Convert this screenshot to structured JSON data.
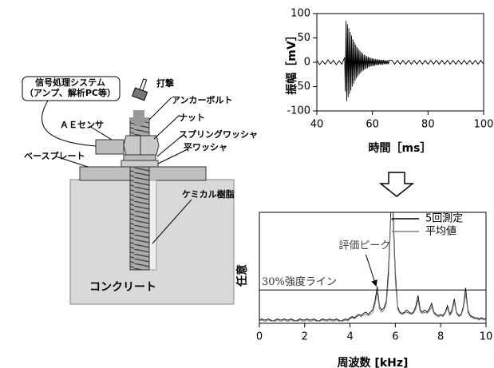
{
  "chart_data": [
    {
      "type": "line",
      "x_label": "時間［ms］",
      "y_label": "振幅［mV］",
      "xlim": [
        40,
        100
      ],
      "ylim": [
        -100,
        100
      ],
      "xticks": [
        40,
        60,
        80,
        100
      ],
      "yticks": [
        -100,
        -50,
        0,
        50,
        100
      ],
      "x": [
        40,
        41,
        42,
        43,
        44,
        45,
        46,
        47,
        48,
        49,
        50,
        50.25,
        50.5,
        50.75,
        51,
        51.25,
        51.5,
        51.75,
        52,
        52.25,
        52.5,
        52.75,
        53,
        53.25,
        53.5,
        53.75,
        54,
        54.25,
        54.5,
        54.75,
        55,
        55.25,
        55.5,
        55.75,
        56,
        56.25,
        56.5,
        56.75,
        57,
        57.25,
        57.5,
        57.75,
        58,
        58.25,
        58.5,
        58.75,
        59,
        59.25,
        59.5,
        59.75,
        60,
        60.25,
        60.5,
        60.75,
        61,
        61.25,
        61.5,
        61.75,
        62,
        62.25,
        62.5,
        62.75,
        63,
        63.25,
        63.5,
        63.75,
        64,
        64.25,
        64.5,
        64.75,
        65,
        65.25,
        65.5,
        65.75,
        66,
        67,
        68,
        69,
        70,
        71,
        72,
        73,
        74,
        75,
        76,
        77,
        78,
        79,
        80,
        81,
        82,
        83,
        84,
        85,
        86,
        87,
        88,
        89,
        90,
        91,
        92,
        93,
        94,
        95,
        96,
        97,
        98,
        99,
        100
      ],
      "series": [
        {
          "color": "#000000",
          "values": [
            4,
            -5,
            3,
            -4,
            5,
            -3,
            4,
            -5,
            3,
            -4,
            10,
            -60,
            85,
            -80,
            78,
            -72,
            70,
            -65,
            62,
            -58,
            55,
            -50,
            47,
            -44,
            41,
            -38,
            36,
            -33,
            31,
            -29,
            27,
            -25,
            24,
            -22,
            21,
            -19,
            18,
            -17,
            16,
            -15,
            14,
            -13,
            12,
            -12,
            11,
            -10,
            10,
            -9,
            9,
            -8,
            8,
            -8,
            7,
            -7,
            7,
            -6,
            6,
            -6,
            6,
            -5,
            5,
            -5,
            5,
            -5,
            5,
            -5,
            5,
            -4,
            4,
            -4,
            4,
            -4,
            4,
            -4,
            4,
            4,
            -4,
            4,
            -4,
            4,
            -4,
            4,
            -4,
            4,
            -4,
            4,
            -4,
            4,
            -4,
            4,
            -4,
            4,
            -4,
            4,
            -4,
            4,
            -4,
            4,
            -4,
            4,
            -4,
            4,
            -4,
            4,
            -4,
            4,
            -4,
            4,
            -4
          ]
        }
      ]
    },
    {
      "type": "line",
      "x_label": "周波数 [kHz]",
      "y_label": "任意",
      "xlim": [
        0,
        10
      ],
      "ylim": [
        0,
        1
      ],
      "xticks": [
        0,
        2,
        4,
        6,
        8,
        10
      ],
      "threshold": {
        "value": 0.3,
        "label": "30%強度ライン"
      },
      "annotation": "評価ピーク",
      "x": [
        0,
        0.1,
        0.2,
        0.3,
        0.4,
        0.5,
        0.6,
        0.7,
        0.8,
        0.9,
        1,
        1.1,
        1.2,
        1.3,
        1.4,
        1.5,
        1.6,
        1.7,
        1.8,
        1.9,
        2,
        2.1,
        2.2,
        2.3,
        2.4,
        2.5,
        2.6,
        2.7,
        2.8,
        2.9,
        3,
        3.1,
        3.2,
        3.3,
        3.4,
        3.5,
        3.6,
        3.7,
        3.8,
        3.9,
        4,
        4.1,
        4.2,
        4.3,
        4.4,
        4.5,
        4.6,
        4.7,
        4.8,
        4.9,
        5,
        5.1,
        5.2,
        5.3,
        5.4,
        5.5,
        5.6,
        5.7,
        5.8,
        5.9,
        6,
        6.1,
        6.2,
        6.3,
        6.4,
        6.5,
        6.6,
        6.7,
        6.8,
        6.9,
        7,
        7.1,
        7.2,
        7.3,
        7.4,
        7.5,
        7.6,
        7.7,
        7.8,
        7.9,
        8,
        8.1,
        8.2,
        8.3,
        8.4,
        8.5,
        8.6,
        8.7,
        8.8,
        8.9,
        9,
        9.1,
        9.2,
        9.3,
        9.4,
        9.5,
        9.6,
        9.7,
        9.8,
        9.9,
        10
      ],
      "series": [
        {
          "name": "5回測定",
          "color": "#000000",
          "values": [
            0.03,
            0.04,
            0.03,
            0.03,
            0.04,
            0.03,
            0.02,
            0.03,
            0.04,
            0.03,
            0.03,
            0.04,
            0.03,
            0.03,
            0.04,
            0.03,
            0.02,
            0.03,
            0.04,
            0.03,
            0.03,
            0.04,
            0.03,
            0.03,
            0.04,
            0.03,
            0.02,
            0.03,
            0.04,
            0.03,
            0.03,
            0.04,
            0.03,
            0.03,
            0.04,
            0.03,
            0.02,
            0.03,
            0.04,
            0.03,
            0.05,
            0.06,
            0.05,
            0.07,
            0.08,
            0.07,
            0.09,
            0.1,
            0.08,
            0.1,
            0.12,
            0.2,
            0.33,
            0.15,
            0.12,
            0.14,
            0.2,
            0.5,
            1.0,
            1.0,
            0.45,
            0.15,
            0.1,
            0.09,
            0.1,
            0.12,
            0.1,
            0.09,
            0.1,
            0.15,
            0.25,
            0.12,
            0.1,
            0.12,
            0.1,
            0.13,
            0.18,
            0.1,
            0.08,
            0.07,
            0.08,
            0.07,
            0.1,
            0.16,
            0.08,
            0.12,
            0.22,
            0.1,
            0.07,
            0.08,
            0.15,
            0.32,
            0.12,
            0.07,
            0.06,
            0.05,
            0.05,
            0.04,
            0.05,
            0.04,
            0.04
          ]
        },
        {
          "name": "平均値",
          "color": "#808080",
          "values": [
            0.02,
            0.03,
            0.02,
            0.02,
            0.03,
            0.02,
            0.02,
            0.02,
            0.03,
            0.02,
            0.02,
            0.03,
            0.02,
            0.02,
            0.03,
            0.02,
            0.02,
            0.02,
            0.03,
            0.02,
            0.02,
            0.03,
            0.02,
            0.02,
            0.03,
            0.02,
            0.02,
            0.02,
            0.03,
            0.02,
            0.02,
            0.03,
            0.02,
            0.02,
            0.03,
            0.02,
            0.02,
            0.02,
            0.03,
            0.02,
            0.04,
            0.05,
            0.04,
            0.06,
            0.07,
            0.06,
            0.08,
            0.08,
            0.07,
            0.08,
            0.1,
            0.17,
            0.28,
            0.13,
            0.1,
            0.12,
            0.17,
            0.42,
            0.95,
            0.92,
            0.38,
            0.13,
            0.09,
            0.08,
            0.09,
            0.1,
            0.09,
            0.08,
            0.09,
            0.13,
            0.21,
            0.1,
            0.09,
            0.1,
            0.09,
            0.11,
            0.15,
            0.09,
            0.07,
            0.06,
            0.07,
            0.06,
            0.09,
            0.14,
            0.07,
            0.1,
            0.19,
            0.09,
            0.06,
            0.07,
            0.13,
            0.27,
            0.1,
            0.06,
            0.05,
            0.04,
            0.04,
            0.03,
            0.04,
            0.03,
            0.03
          ]
        }
      ]
    }
  ],
  "diagram": {
    "system_line1": "信号処理システム",
    "system_line2": "（アンプ、解析PC等）",
    "hammer": "打撃",
    "anchor_bolt": "アンカーボルト",
    "nut": "ナット",
    "spring_washer": "スプリングワッシャ",
    "flat_washer": "平ワッシャ",
    "ae_sensor": "ＡＥセンサ",
    "base_plate": "ベースプレート",
    "resin": "ケミカル樹脂",
    "concrete": "コンクリート"
  }
}
